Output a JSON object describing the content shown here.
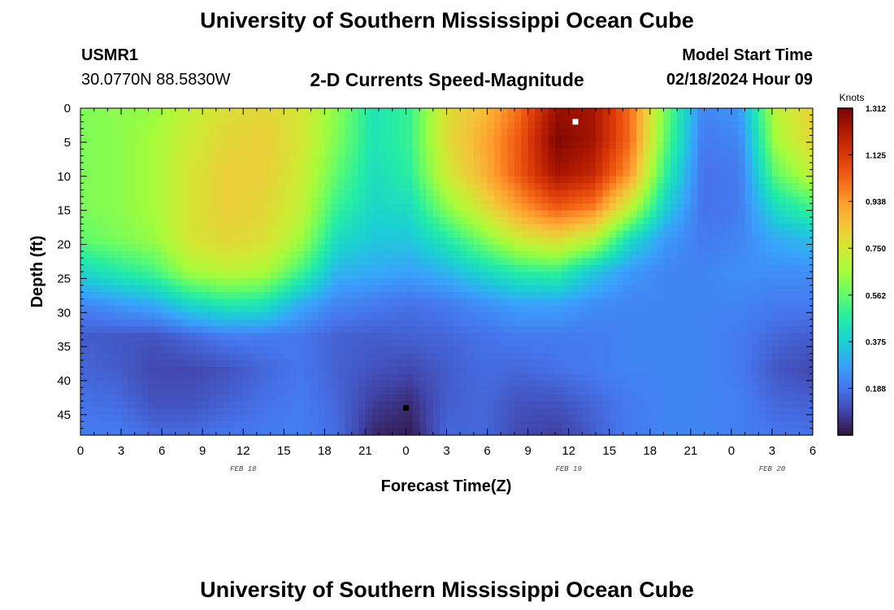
{
  "header": {
    "title": "University of Southern Mississippi Ocean Cube",
    "station": "USMR1",
    "coords": "30.0770N  88.5830W",
    "subtitle": "2-D Currents Speed-Magnitude",
    "model_label": "Model Start Time",
    "model_time": "02/18/2024 Hour 09"
  },
  "footer": {
    "title": "University of Southern Mississippi Ocean Cube"
  },
  "chart_data": {
    "type": "heatmap",
    "xlabel": "Forecast Time(Z)",
    "ylabel": "Depth (ft)",
    "x_tick_labels": [
      "0",
      "3",
      "6",
      "9",
      "12",
      "15",
      "18",
      "21",
      "0",
      "3",
      "6",
      "9",
      "12",
      "15",
      "18",
      "21",
      "0",
      "3",
      "6"
    ],
    "x_range_hours": [
      0,
      54
    ],
    "date_labels": [
      {
        "text": "FEB 18",
        "hour": 12
      },
      {
        "text": "FEB 19",
        "hour": 36
      },
      {
        "text": "FEB 20",
        "hour": 51
      }
    ],
    "y_ticks": [
      0,
      5,
      10,
      15,
      20,
      25,
      30,
      35,
      40,
      45
    ],
    "y_range_ft": [
      0,
      48
    ],
    "y_inverted": true,
    "colorbar": {
      "units": "Knots",
      "min": 0,
      "max": 1.312,
      "tick_labels": [
        "0.188",
        "0.375",
        "0.562",
        "0.750",
        "0.938",
        "1.125",
        "1.312"
      ],
      "colors": [
        "#30123b",
        "#4145ab",
        "#4675ed",
        "#39a2fc",
        "#1bcfd4",
        "#24eca6",
        "#61fc6c",
        "#a4fc3b",
        "#d1e834",
        "#f3c63a",
        "#fe9b2d",
        "#f36315",
        "#d93806",
        "#b11901",
        "#7a0402"
      ]
    },
    "markers": [
      {
        "label": "max",
        "hour": 36.5,
        "depth_ft": 2,
        "color": "#ffffff"
      },
      {
        "label": "min",
        "hour": 24,
        "depth_ft": 44,
        "color": "#000000"
      }
    ],
    "speed_field_knots": [
      [
        0.6,
        0.62,
        0.64,
        0.72,
        0.78,
        0.8,
        0.76,
        0.62,
        0.44,
        0.5,
        0.78,
        0.86,
        1.02,
        1.26,
        1.24,
        1.02,
        0.58,
        0.22,
        0.26,
        0.7,
        0.82
      ],
      [
        0.6,
        0.62,
        0.66,
        0.74,
        0.8,
        0.82,
        0.76,
        0.6,
        0.44,
        0.5,
        0.78,
        0.9,
        1.06,
        1.3,
        1.24,
        1.02,
        0.55,
        0.2,
        0.22,
        0.66,
        0.8
      ],
      [
        0.6,
        0.62,
        0.66,
        0.76,
        0.82,
        0.82,
        0.74,
        0.56,
        0.42,
        0.48,
        0.74,
        0.88,
        1.06,
        1.24,
        1.18,
        0.94,
        0.48,
        0.18,
        0.2,
        0.56,
        0.72
      ],
      [
        0.6,
        0.62,
        0.66,
        0.76,
        0.82,
        0.8,
        0.72,
        0.5,
        0.4,
        0.42,
        0.62,
        0.78,
        0.94,
        1.06,
        1.0,
        0.72,
        0.38,
        0.18,
        0.2,
        0.42,
        0.52
      ],
      [
        0.56,
        0.6,
        0.64,
        0.76,
        0.8,
        0.78,
        0.66,
        0.42,
        0.36,
        0.36,
        0.46,
        0.6,
        0.74,
        0.8,
        0.7,
        0.42,
        0.26,
        0.2,
        0.22,
        0.3,
        0.34
      ],
      [
        0.4,
        0.46,
        0.52,
        0.66,
        0.7,
        0.68,
        0.52,
        0.32,
        0.3,
        0.28,
        0.32,
        0.4,
        0.48,
        0.5,
        0.36,
        0.26,
        0.22,
        0.22,
        0.24,
        0.24,
        0.24
      ],
      [
        0.22,
        0.26,
        0.3,
        0.4,
        0.46,
        0.44,
        0.3,
        0.22,
        0.2,
        0.18,
        0.2,
        0.24,
        0.28,
        0.28,
        0.24,
        0.22,
        0.22,
        0.22,
        0.22,
        0.2,
        0.2
      ],
      [
        0.14,
        0.13,
        0.12,
        0.16,
        0.2,
        0.2,
        0.19,
        0.15,
        0.14,
        0.15,
        0.16,
        0.18,
        0.2,
        0.2,
        0.2,
        0.22,
        0.22,
        0.22,
        0.2,
        0.16,
        0.14
      ],
      [
        0.16,
        0.14,
        0.1,
        0.1,
        0.12,
        0.16,
        0.19,
        0.15,
        0.12,
        0.1,
        0.14,
        0.17,
        0.16,
        0.18,
        0.2,
        0.22,
        0.22,
        0.22,
        0.2,
        0.13,
        0.1
      ],
      [
        0.18,
        0.17,
        0.12,
        0.12,
        0.15,
        0.18,
        0.2,
        0.16,
        0.08,
        0.05,
        0.14,
        0.16,
        0.12,
        0.12,
        0.16,
        0.2,
        0.22,
        0.22,
        0.21,
        0.16,
        0.15
      ],
      [
        0.2,
        0.2,
        0.17,
        0.17,
        0.19,
        0.2,
        0.21,
        0.17,
        0.04,
        0.02,
        0.16,
        0.16,
        0.1,
        0.08,
        0.14,
        0.2,
        0.22,
        0.22,
        0.21,
        0.19,
        0.18
      ]
    ]
  }
}
